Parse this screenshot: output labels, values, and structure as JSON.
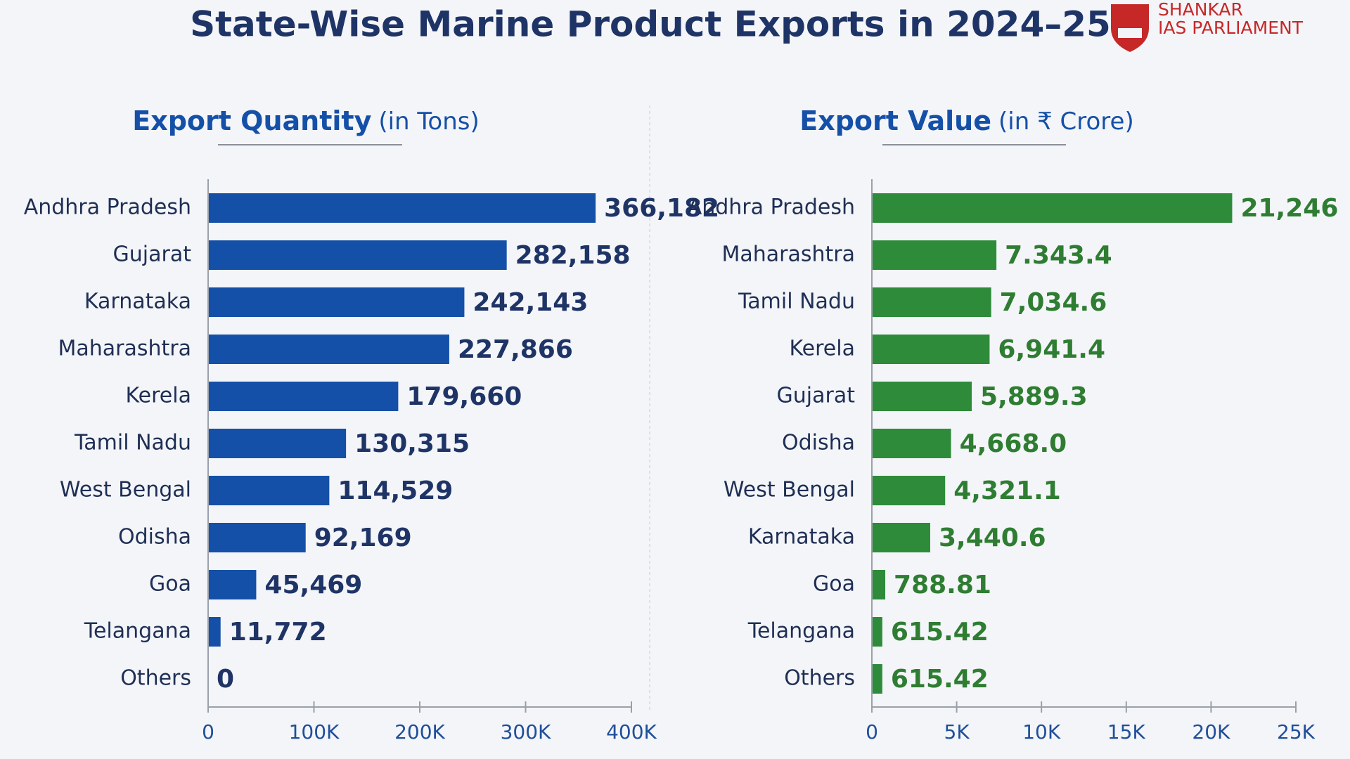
{
  "title": "State-Wise Marine Product Exports in 2024–25",
  "logo": {
    "line1": "SHANKAR",
    "line2": "IAS PARLIAMENT"
  },
  "chart_data": [
    {
      "type": "barh",
      "title": "Export Quantity",
      "subtitle": "(in Tons)",
      "categories": [
        "Andhra Pradesh",
        "Gujarat",
        "Karnataka",
        "Maharashtra",
        "Kerela",
        "Tamil Nadu",
        "West Bengal",
        "Odisha",
        "Goa",
        "Telangana",
        "Others"
      ],
      "values": [
        366182,
        282158,
        242143,
        227866,
        179660,
        130315,
        114529,
        92169,
        45469,
        11772,
        0
      ],
      "value_labels": [
        "366,182",
        "282,158",
        "242,143",
        "227,866",
        "179,660",
        "130,315",
        "114,529",
        "92,169",
        "45,469",
        "11,772",
        "0"
      ],
      "color": "#1550a8",
      "label_color": "#1f3466",
      "xlim": [
        0,
        400000
      ],
      "xticks": [
        0,
        {
          "value": 100000,
          "label": "100K"
        },
        {
          "value": 200000,
          "label": "200K"
        },
        {
          "value": 300000,
          "label": "300K"
        },
        {
          "value": 400000,
          "label": "400K"
        }
      ]
    },
    {
      "type": "barh",
      "title": "Export Value",
      "subtitle": "(in ₹ Crore)",
      "categories": [
        "Andhra Pradesh",
        "Maharashtra",
        "Tamil Nadu",
        "Kerela",
        "Gujarat",
        "Odisha",
        "West Bengal",
        "Karnataka",
        "Goa",
        "Telangana",
        "Others"
      ],
      "values": [
        21246,
        7343.4,
        7034.6,
        6941.4,
        5889.3,
        4668.0,
        4321.1,
        3440.6,
        788.81,
        615.42,
        615.42
      ],
      "value_labels": [
        "21,246",
        "7.343.4",
        "7,034.6",
        "6,941.4",
        "5,889.3",
        "4,668.0",
        "4,321.1",
        "3,440.6",
        "788.81",
        "615.42",
        "615.42"
      ],
      "color": "#2e8b3a",
      "label_color": "#2e7d32",
      "xlim": [
        0,
        25000
      ],
      "xticks": [
        0,
        {
          "value": 5000,
          "label": "5K"
        },
        {
          "value": 10000,
          "label": "10K"
        },
        {
          "value": 15000,
          "label": "15K"
        },
        {
          "value": 20000,
          "label": "20K"
        },
        {
          "value": 25000,
          "label": "25K"
        }
      ]
    }
  ]
}
